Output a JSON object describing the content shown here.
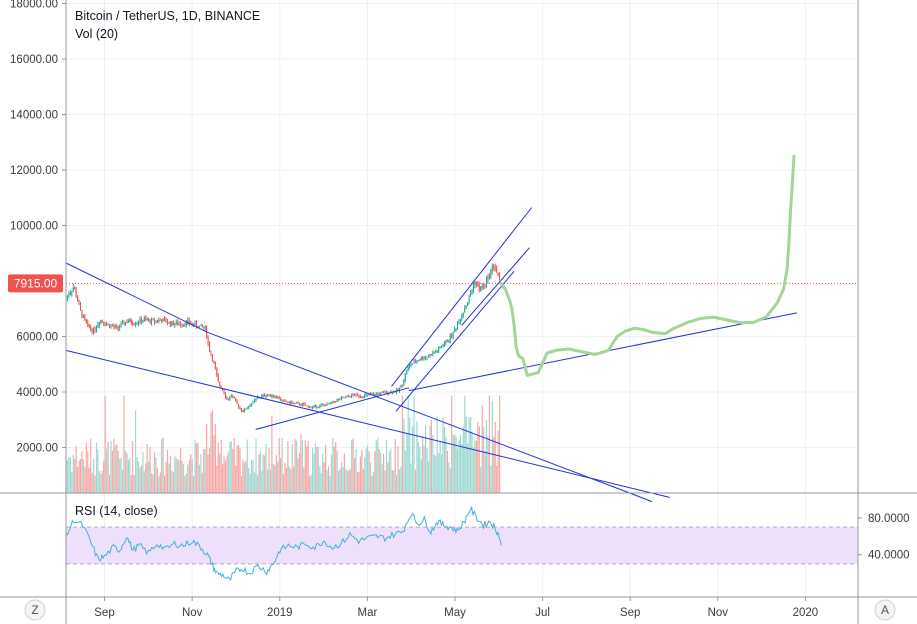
{
  "chart_data": [
    {
      "type": "candlestick",
      "title": "Bitcoin / TetherUS, 1D, BINANCE",
      "secondary_label": "Vol (20)",
      "y_ticks": [
        "18000.00",
        "16000.00",
        "14000.00",
        "12000.00",
        "10000.00",
        "6000.00",
        "4000.00",
        "2000.00"
      ],
      "ylim": [
        0,
        18100
      ],
      "x_ticks": [
        "Sep",
        "Nov",
        "2019",
        "Mar",
        "May",
        "Jul",
        "Sep",
        "Nov",
        "2020"
      ],
      "x_tick_positions": [
        1,
        3,
        5,
        7,
        9,
        11,
        13,
        15,
        17
      ],
      "x_range": [
        0.12,
        18.2
      ],
      "last_price_label": "7915.00",
      "last_price": 7915,
      "colors": {
        "up": "#26a69a",
        "down": "#ef5350",
        "price_tag": "#ef5350",
        "trendline": "#2130d6",
        "projection": "#a5d494"
      },
      "price_series": [
        [
          0.12,
          7400
        ],
        [
          0.3,
          7800
        ],
        [
          0.45,
          6900
        ],
        [
          0.6,
          6400
        ],
        [
          0.75,
          6200
        ],
        [
          0.9,
          6600
        ],
        [
          1.1,
          6400
        ],
        [
          1.3,
          6300
        ],
        [
          1.5,
          6550
        ],
        [
          1.7,
          6500
        ],
        [
          1.9,
          6600
        ],
        [
          2.1,
          6550
        ],
        [
          2.3,
          6600
        ],
        [
          2.5,
          6480
        ],
        [
          2.7,
          6450
        ],
        [
          2.9,
          6500
        ],
        [
          3.1,
          6400
        ],
        [
          3.3,
          6300
        ],
        [
          3.38,
          5600
        ],
        [
          3.5,
          5000
        ],
        [
          3.6,
          4300
        ],
        [
          3.7,
          4100
        ],
        [
          3.8,
          3700
        ],
        [
          3.9,
          3900
        ],
        [
          4.0,
          3600
        ],
        [
          4.15,
          3300
        ],
        [
          4.3,
          3500
        ],
        [
          4.5,
          3800
        ],
        [
          4.7,
          3900
        ],
        [
          4.9,
          3850
        ],
        [
          5.1,
          3650
        ],
        [
          5.3,
          3600
        ],
        [
          5.5,
          3550
        ],
        [
          5.7,
          3450
        ],
        [
          5.9,
          3500
        ],
        [
          6.1,
          3550
        ],
        [
          6.3,
          3700
        ],
        [
          6.5,
          3800
        ],
        [
          6.7,
          3900
        ],
        [
          6.9,
          3850
        ],
        [
          7.1,
          3900
        ],
        [
          7.3,
          3950
        ],
        [
          7.5,
          4000
        ],
        [
          7.7,
          4050
        ],
        [
          7.8,
          4300
        ],
        [
          7.9,
          4800
        ],
        [
          8.0,
          5000
        ],
        [
          8.2,
          5200
        ],
        [
          8.4,
          5300
        ],
        [
          8.6,
          5500
        ],
        [
          8.8,
          5800
        ],
        [
          8.95,
          6100
        ],
        [
          9.1,
          6600
        ],
        [
          9.3,
          7300
        ],
        [
          9.45,
          8000
        ],
        [
          9.55,
          7700
        ],
        [
          9.7,
          7900
        ],
        [
          9.8,
          8300
        ],
        [
          9.9,
          8600
        ],
        [
          9.97,
          8200
        ],
        [
          10.05,
          7915
        ]
      ],
      "volume_max": 3500,
      "trendlines": [
        {
          "from": [
            0.12,
            8650
          ],
          "to": [
            3.35,
            6150
          ]
        },
        {
          "from": [
            3.35,
            6150
          ],
          "to": [
            13.5,
            50
          ]
        },
        {
          "from": [
            0.12,
            5500
          ],
          "to": [
            13.9,
            200
          ]
        },
        {
          "from": [
            4.45,
            2650
          ],
          "to": [
            7.95,
            4150
          ]
        },
        {
          "from": [
            7.95,
            4050
          ],
          "to": [
            16.8,
            6850
          ]
        },
        {
          "from": [
            7.65,
            3300
          ],
          "to": [
            10.35,
            8350
          ]
        },
        {
          "from": [
            7.55,
            4200
          ],
          "to": [
            10.75,
            10650
          ]
        },
        {
          "from": [
            9.15,
            6400
          ],
          "to": [
            10.7,
            9200
          ]
        }
      ],
      "projection": [
        [
          10.05,
          7915
        ],
        [
          10.15,
          7700
        ],
        [
          10.25,
          7300
        ],
        [
          10.3,
          7000
        ],
        [
          10.35,
          6400
        ],
        [
          10.4,
          5600
        ],
        [
          10.45,
          5300
        ],
        [
          10.55,
          5200
        ],
        [
          10.6,
          4900
        ],
        [
          10.65,
          4600
        ],
        [
          10.9,
          4700
        ],
        [
          11.1,
          5400
        ],
        [
          11.3,
          5500
        ],
        [
          11.6,
          5550
        ],
        [
          11.9,
          5450
        ],
        [
          12.2,
          5350
        ],
        [
          12.5,
          5500
        ],
        [
          12.7,
          6000
        ],
        [
          12.9,
          6200
        ],
        [
          13.1,
          6300
        ],
        [
          13.3,
          6250
        ],
        [
          13.5,
          6150
        ],
        [
          13.8,
          6100
        ],
        [
          14.0,
          6300
        ],
        [
          14.3,
          6500
        ],
        [
          14.6,
          6650
        ],
        [
          14.9,
          6700
        ],
        [
          15.2,
          6600
        ],
        [
          15.5,
          6500
        ],
        [
          15.8,
          6500
        ],
        [
          16.1,
          6700
        ],
        [
          16.35,
          7200
        ],
        [
          16.5,
          7700
        ],
        [
          16.58,
          8400
        ],
        [
          16.62,
          9300
        ],
        [
          16.66,
          10500
        ],
        [
          16.7,
          11500
        ],
        [
          16.74,
          12500
        ]
      ]
    },
    {
      "type": "line",
      "title": "RSI (14, close)",
      "y_ticks": [
        "80.0000",
        "40.0000"
      ],
      "band": [
        30,
        70
      ],
      "ylim": [
        6,
        93
      ],
      "series_color": "#40b0d8",
      "band_color": "#eee0fb",
      "values": [
        [
          0.12,
          60
        ],
        [
          0.3,
          78
        ],
        [
          0.5,
          72
        ],
        [
          0.7,
          52
        ],
        [
          0.85,
          35
        ],
        [
          1.0,
          38
        ],
        [
          1.2,
          48
        ],
        [
          1.35,
          45
        ],
        [
          1.5,
          60
        ],
        [
          1.65,
          45
        ],
        [
          1.8,
          50
        ],
        [
          2.0,
          42
        ],
        [
          2.2,
          52
        ],
        [
          2.4,
          46
        ],
        [
          2.6,
          52
        ],
        [
          2.8,
          50
        ],
        [
          3.0,
          55
        ],
        [
          3.2,
          48
        ],
        [
          3.35,
          40
        ],
        [
          3.45,
          30
        ],
        [
          3.55,
          20
        ],
        [
          3.7,
          18
        ],
        [
          3.85,
          12
        ],
        [
          4.0,
          22
        ],
        [
          4.15,
          25
        ],
        [
          4.3,
          20
        ],
        [
          4.5,
          28
        ],
        [
          4.7,
          22
        ],
        [
          4.85,
          30
        ],
        [
          5.0,
          45
        ],
        [
          5.2,
          50
        ],
        [
          5.4,
          48
        ],
        [
          5.6,
          52
        ],
        [
          5.8,
          48
        ],
        [
          6.0,
          55
        ],
        [
          6.2,
          48
        ],
        [
          6.4,
          52
        ],
        [
          6.6,
          62
        ],
        [
          6.8,
          55
        ],
        [
          7.0,
          58
        ],
        [
          7.2,
          60
        ],
        [
          7.4,
          58
        ],
        [
          7.6,
          62
        ],
        [
          7.8,
          65
        ],
        [
          8.0,
          85
        ],
        [
          8.15,
          74
        ],
        [
          8.3,
          78
        ],
        [
          8.45,
          65
        ],
        [
          8.6,
          76
        ],
        [
          8.75,
          72
        ],
        [
          8.9,
          70
        ],
        [
          9.05,
          66
        ],
        [
          9.2,
          75
        ],
        [
          9.35,
          90
        ],
        [
          9.5,
          80
        ],
        [
          9.65,
          72
        ],
        [
          9.8,
          76
        ],
        [
          9.9,
          70
        ],
        [
          10.0,
          62
        ],
        [
          10.05,
          50
        ]
      ]
    }
  ],
  "corner_buttons": {
    "left": "Z",
    "right": "A"
  }
}
